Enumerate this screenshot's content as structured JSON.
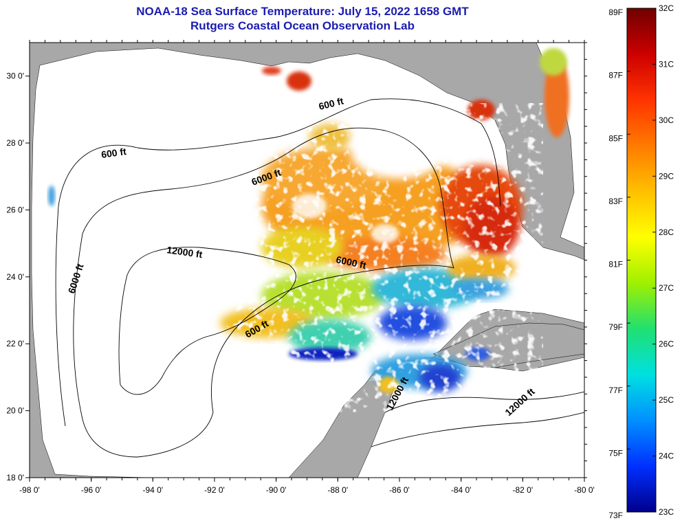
{
  "header": {
    "title_line1": "NOAA-18 Sea Surface Temperature:  July 15, 2022 1658 GMT",
    "title_line2": "Rutgers Coastal Ocean Observation Lab"
  },
  "map": {
    "lon_ticks": [
      "-98 0'",
      "-96 0'",
      "-94 0'",
      "-92 0'",
      "-90 0'",
      "-88 0'",
      "-86 0'",
      "-84 0'",
      "-82 0'",
      "-80 0'"
    ],
    "lat_ticks": [
      "18 0'",
      "20 0'",
      "22 0'",
      "24 0'",
      "26 0'",
      "28 0'",
      "30 0'"
    ],
    "contour_labels": {
      "c600_a": "600 ft",
      "c600_b": "600 ft",
      "c600_c": "600 ft",
      "c6000_a": "6000 ft",
      "c6000_b": "6000 ft",
      "c6000_c": "6000 ft",
      "c12000_a": "12000 ft",
      "c12000_b": "12000 ft",
      "c12000_c": "12000 ft"
    },
    "colors": {
      "land": "#a8a8a8",
      "ocean": "#ffffff",
      "axis": "#000000"
    }
  },
  "colorbar": {
    "fahrenheit_labels": [
      "89F",
      "87F",
      "85F",
      "83F",
      "81F",
      "79F",
      "77F",
      "75F",
      "73F"
    ],
    "celsius_labels": [
      "32C",
      "31C",
      "30C",
      "29C",
      "28C",
      "27C",
      "26C",
      "25C",
      "24C",
      "23C"
    ],
    "gradient": [
      "#700000",
      "#cc0000",
      "#ff3300",
      "#ff7a00",
      "#ffbf00",
      "#ffff00",
      "#a0f000",
      "#20e070",
      "#00e0e0",
      "#0090ff",
      "#0030ff",
      "#00008c"
    ]
  }
}
